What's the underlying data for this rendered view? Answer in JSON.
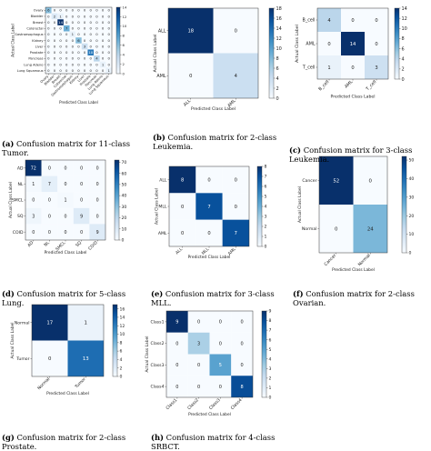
{
  "chart_data": [
    {
      "type": "heatmap",
      "caption_label": "(a)",
      "caption_text": "Confusion matrix for 11-class Tumor.",
      "title": "",
      "xlabel": "Predicted Class Label",
      "ylabel": "Actual Class Label",
      "classes": [
        "Ovary",
        "Bladder",
        "Breast",
        "Colorectal",
        "Gastroesophagus",
        "Kidney",
        "Liver",
        "Prostate",
        "Pancreas",
        "Lung Adeno",
        "Lung Squamous"
      ],
      "matrix": [
        [
          6,
          0,
          0,
          0,
          0,
          0,
          0,
          0,
          0,
          0,
          0
        ],
        [
          0,
          2,
          1,
          0,
          0,
          0,
          0,
          0,
          0,
          0,
          0
        ],
        [
          0,
          0,
          14,
          0,
          0,
          0,
          0,
          0,
          0,
          0,
          0
        ],
        [
          0,
          0,
          0,
          7,
          0,
          0,
          0,
          0,
          0,
          0,
          0
        ],
        [
          0,
          0,
          0,
          0,
          1,
          0,
          0,
          0,
          0,
          0,
          0
        ],
        [
          0,
          0,
          0,
          0,
          0,
          6,
          0,
          0,
          0,
          0,
          0
        ],
        [
          0,
          0,
          0,
          0,
          0,
          0,
          3,
          0,
          0,
          0,
          0
        ],
        [
          0,
          0,
          0,
          0,
          0,
          0,
          0,
          10,
          0,
          0,
          0
        ],
        [
          0,
          0,
          0,
          0,
          0,
          0,
          0,
          0,
          4,
          0,
          0
        ],
        [
          0,
          0,
          0,
          0,
          0,
          0,
          0,
          0,
          0,
          1,
          0
        ],
        [
          0,
          0,
          0,
          0,
          0,
          0,
          0,
          0,
          0,
          0,
          1
        ]
      ],
      "colorbar_ticks": [
        0,
        2,
        4,
        6,
        8,
        10,
        12,
        14
      ],
      "vmax": 14,
      "grid": false,
      "legend": "none"
    },
    {
      "type": "heatmap",
      "caption_label": "(b)",
      "caption_text": "Confusion matrix for 2-class Leukemia.",
      "title": "",
      "xlabel": "Predicted Class Label",
      "ylabel": "Actual Class Label",
      "classes": [
        "ALL",
        "AML"
      ],
      "matrix": [
        [
          18,
          0
        ],
        [
          0,
          4
        ]
      ],
      "colorbar_ticks": [
        0,
        2,
        4,
        6,
        8,
        10,
        12,
        14,
        16,
        18
      ],
      "vmax": 18,
      "grid": false,
      "legend": "none"
    },
    {
      "type": "heatmap",
      "caption_label": "(c)",
      "caption_text": "Confusion matrix for 3-class Leukemia.",
      "title": "",
      "xlabel": "Predicted Class Label",
      "ylabel": "Actual Class Label",
      "classes": [
        "B_cell",
        "AML",
        "T_cell"
      ],
      "matrix": [
        [
          4,
          0,
          0
        ],
        [
          0,
          14,
          0
        ],
        [
          1,
          0,
          3
        ]
      ],
      "colorbar_ticks": [
        0,
        2,
        4,
        6,
        8,
        10,
        12,
        14
      ],
      "vmax": 14,
      "grid": false,
      "legend": "none"
    },
    {
      "type": "heatmap",
      "caption_label": "(d)",
      "caption_text": "Confusion matrix for 5-class Lung.",
      "title": "",
      "xlabel": "Predicted Class Label",
      "ylabel": "Actual Class Label",
      "classes": [
        "AD",
        "NL",
        "SMCL",
        "SQ",
        "COID"
      ],
      "matrix": [
        [
          72,
          0,
          0,
          0,
          0
        ],
        [
          1,
          7,
          0,
          0,
          0
        ],
        [
          0,
          0,
          1,
          0,
          0
        ],
        [
          3,
          0,
          0,
          9,
          0
        ],
        [
          0,
          0,
          0,
          0,
          9
        ]
      ],
      "colorbar_ticks": [
        0,
        10,
        20,
        30,
        40,
        50,
        60,
        70
      ],
      "vmax": 72,
      "grid": false,
      "legend": "none"
    },
    {
      "type": "heatmap",
      "caption_label": "(e)",
      "caption_text": "Confusion matrix for 3-class MLL.",
      "title": "",
      "xlabel": "Predicted Class Label",
      "ylabel": "Actual Class Label",
      "classes": [
        "ALL",
        "MLL",
        "AML"
      ],
      "matrix": [
        [
          8,
          0,
          0
        ],
        [
          0,
          7,
          0
        ],
        [
          0,
          0,
          7
        ]
      ],
      "colorbar_ticks": [
        0,
        1,
        2,
        3,
        4,
        5,
        6,
        7,
        8
      ],
      "vmax": 8,
      "grid": false,
      "legend": "none"
    },
    {
      "type": "heatmap",
      "caption_label": "(f)",
      "caption_text": "Confusion matrix for 2-class Ovarian.",
      "title": "",
      "xlabel": "Predicted Class Label",
      "ylabel": "Actual Class Label",
      "classes": [
        "Cancer",
        "Normal"
      ],
      "matrix": [
        [
          52,
          0
        ],
        [
          0,
          24
        ]
      ],
      "colorbar_ticks": [
        0,
        10,
        20,
        30,
        40,
        50
      ],
      "vmax": 52,
      "grid": false,
      "legend": "none"
    },
    {
      "type": "heatmap",
      "caption_label": "(g)",
      "caption_text": "Confusion matrix for 2-class Prostate.",
      "title": "",
      "xlabel": "Predicted Class Label",
      "ylabel": "Actual Class Label",
      "classes": [
        "Normal",
        "Tumor"
      ],
      "matrix": [
        [
          17,
          1
        ],
        [
          0,
          13
        ]
      ],
      "colorbar_ticks": [
        0,
        2,
        4,
        6,
        8,
        10,
        12,
        14,
        16
      ],
      "vmax": 17,
      "grid": false,
      "legend": "none"
    },
    {
      "type": "heatmap",
      "caption_label": "(h)",
      "caption_text": "Confusion matrix for 4-class SRBCT.",
      "title": "",
      "xlabel": "Predicted Class Label",
      "ylabel": "Actual Class Label",
      "classes": [
        "Class1",
        "Class2",
        "Class3",
        "Class4"
      ],
      "matrix": [
        [
          9,
          0,
          0,
          0
        ],
        [
          0,
          3,
          0,
          0
        ],
        [
          0,
          0,
          5,
          0
        ],
        [
          0,
          0,
          0,
          8
        ]
      ],
      "colorbar_ticks": [
        0,
        1,
        2,
        3,
        4,
        5,
        6,
        7,
        8,
        9
      ],
      "vmax": 9,
      "grid": false,
      "legend": "none"
    }
  ]
}
